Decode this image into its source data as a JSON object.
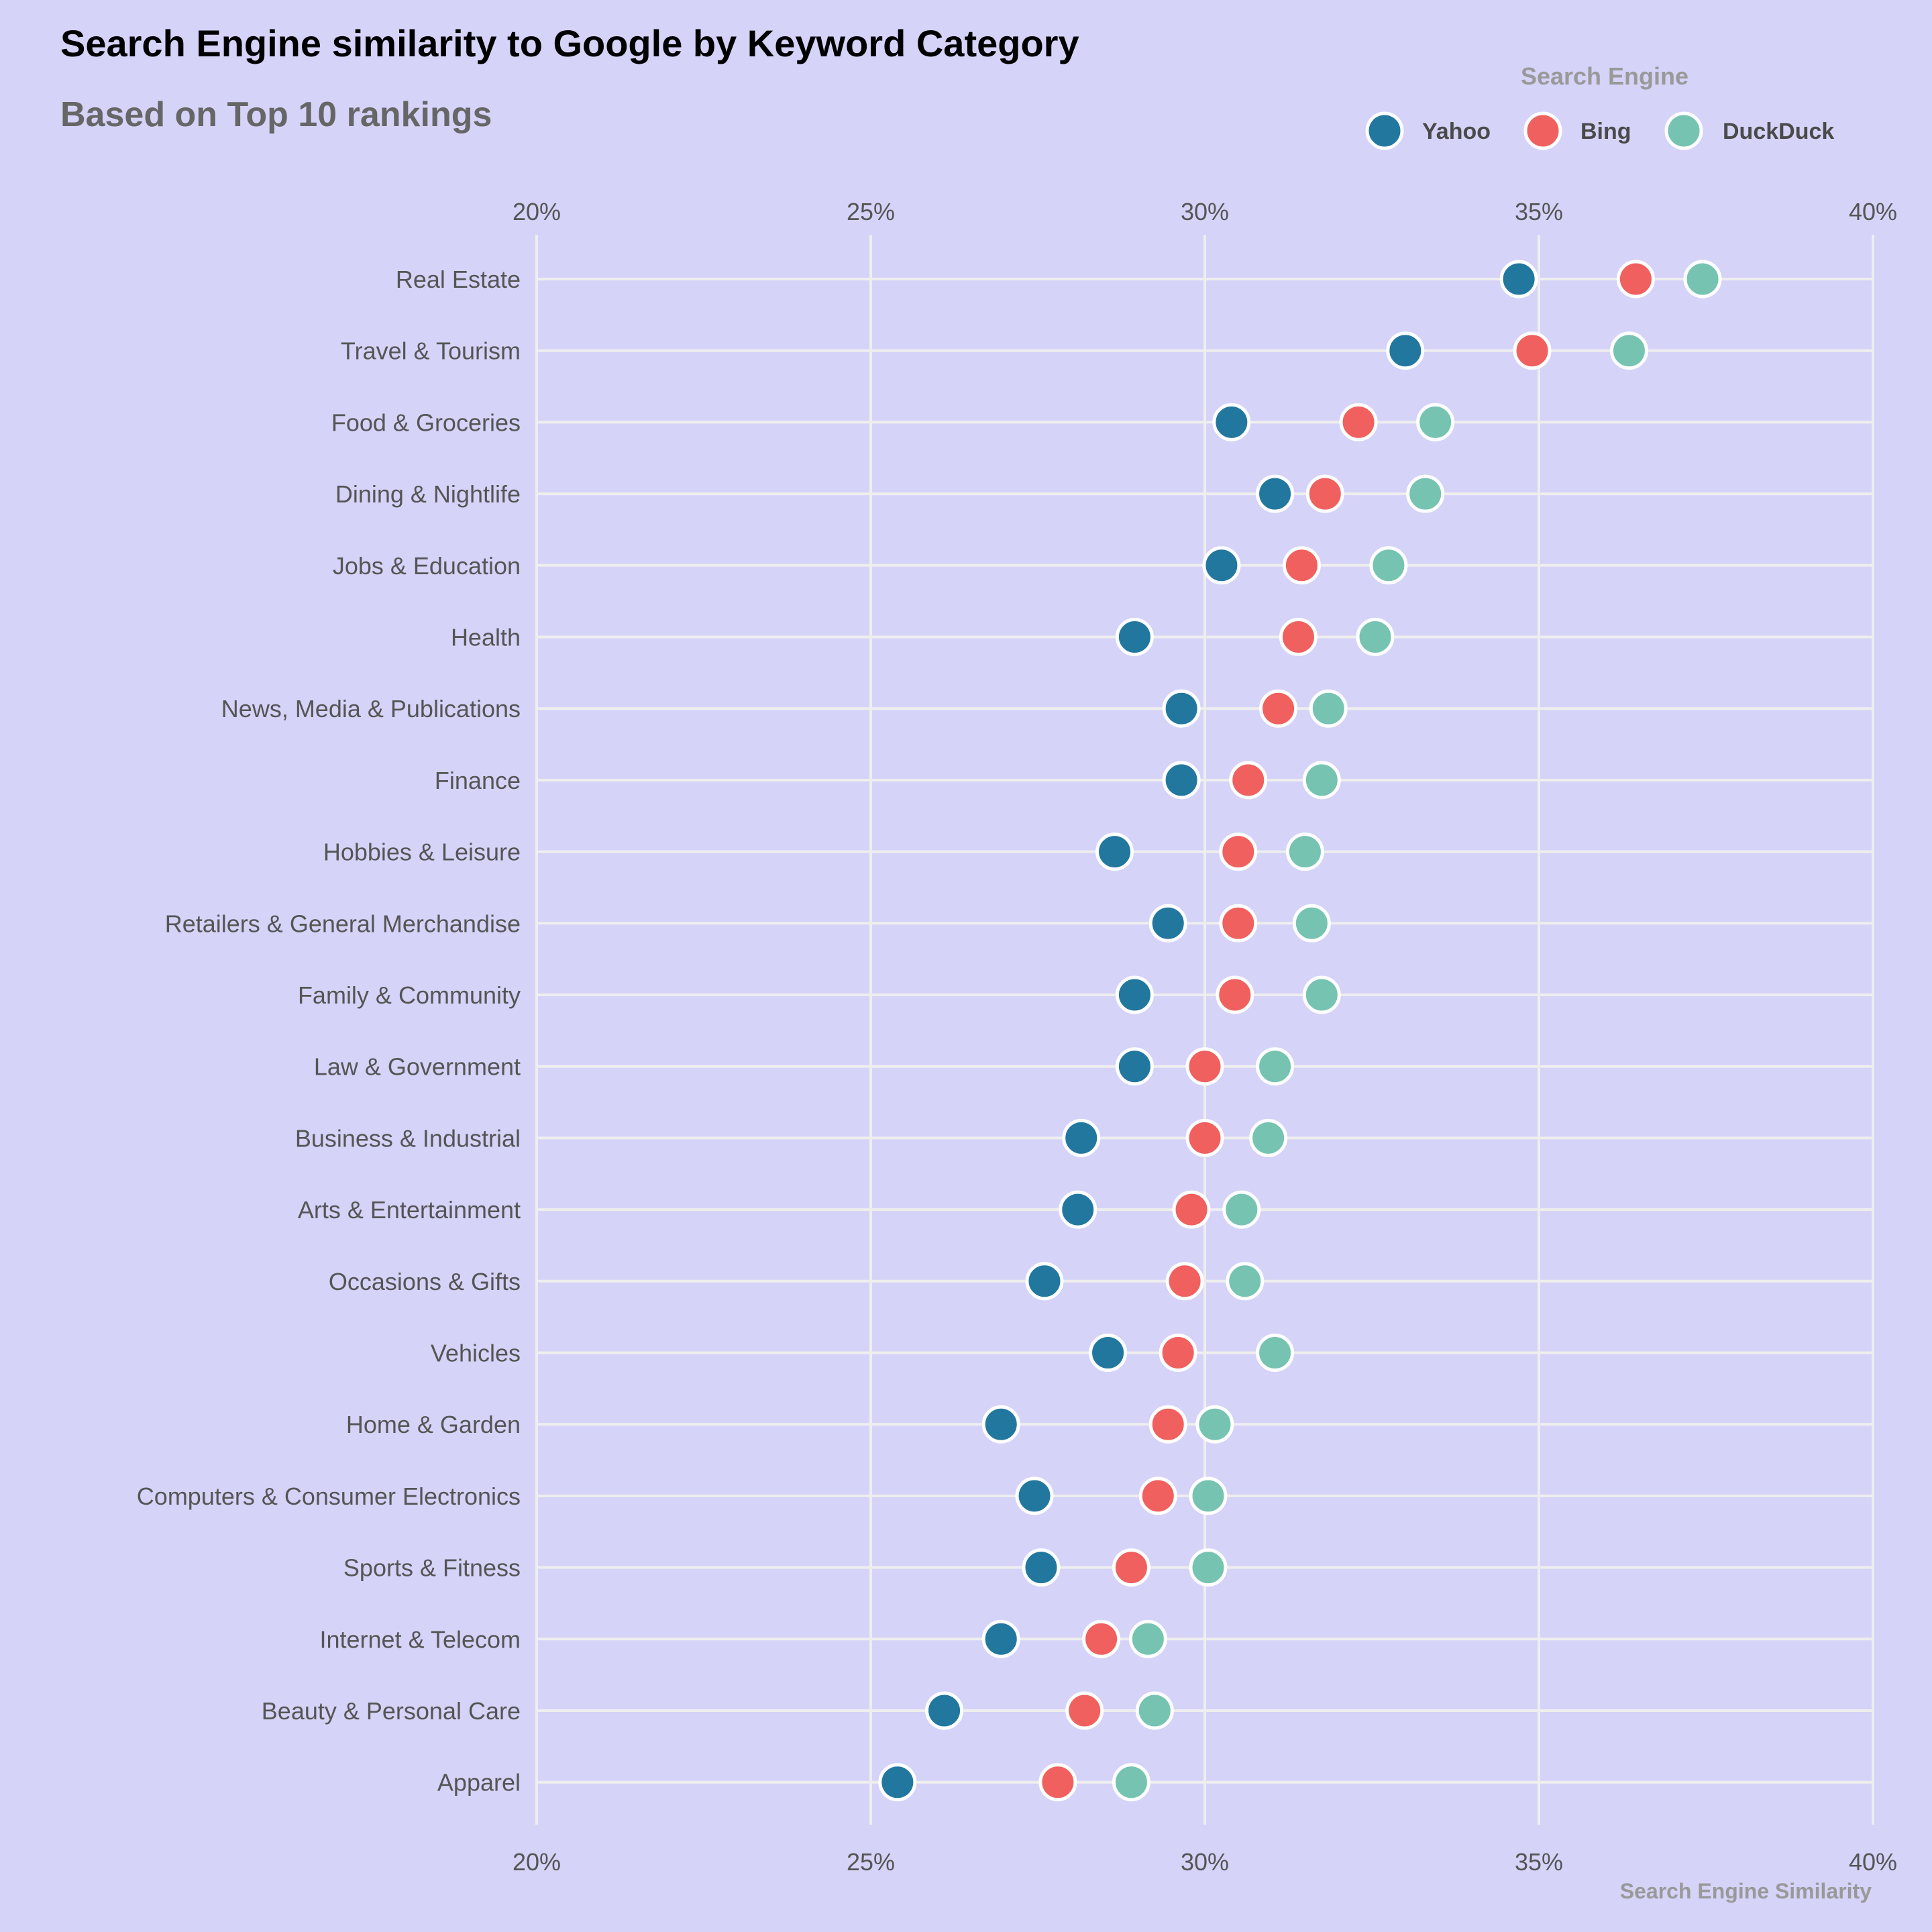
{
  "chart_data": {
    "type": "dot",
    "title": "Search Engine similarity to Google by Keyword Category",
    "subtitle": "Based on Top 10 rankings",
    "xlabel": "Search Engine Similarity",
    "ylabel": "",
    "xlim": [
      20,
      40
    ],
    "x_ticks": [
      20,
      25,
      30,
      35,
      40
    ],
    "x_tick_labels": [
      "20%",
      "25%",
      "30%",
      "35%",
      "40%"
    ],
    "x_axis_position": "top-and-bottom",
    "grid": true,
    "legend": {
      "title": "Search Engine",
      "placement": "top-right"
    },
    "categories": [
      "Real Estate",
      "Travel & Tourism",
      "Food & Groceries",
      "Dining & Nightlife",
      "Jobs & Education",
      "Health",
      "News, Media & Publications",
      "Finance",
      "Hobbies & Leisure",
      "Retailers & General Merchandise",
      "Family & Community",
      "Law & Government",
      "Business & Industrial",
      "Arts & Entertainment",
      "Occasions & Gifts",
      "Vehicles",
      "Home & Garden",
      "Computers & Consumer Electronics",
      "Sports & Fitness",
      "Internet & Telecom",
      "Beauty & Personal Care",
      "Apparel"
    ],
    "series": [
      {
        "name": "Yahoo",
        "color": "#22779e",
        "values": [
          34.7,
          33.0,
          30.4,
          31.05,
          30.25,
          28.95,
          29.65,
          29.65,
          28.65,
          29.45,
          28.95,
          28.95,
          28.15,
          28.1,
          27.6,
          28.55,
          26.95,
          27.45,
          27.55,
          26.95,
          26.1,
          25.4
        ]
      },
      {
        "name": "Bing",
        "color": "#f0605e",
        "values": [
          36.45,
          34.9,
          32.3,
          31.8,
          31.45,
          31.4,
          31.1,
          30.65,
          30.5,
          30.5,
          30.45,
          30.0,
          30.0,
          29.8,
          29.7,
          29.6,
          29.45,
          29.3,
          28.9,
          28.45,
          28.2,
          27.8
        ]
      },
      {
        "name": "DuckDuck",
        "color": "#76c3b2",
        "values": [
          37.45,
          36.35,
          33.45,
          33.3,
          32.75,
          32.55,
          31.85,
          31.75,
          31.5,
          31.6,
          31.75,
          31.05,
          30.95,
          30.55,
          30.6,
          31.05,
          30.15,
          30.05,
          30.05,
          29.15,
          29.25,
          28.9
        ]
      }
    ]
  }
}
